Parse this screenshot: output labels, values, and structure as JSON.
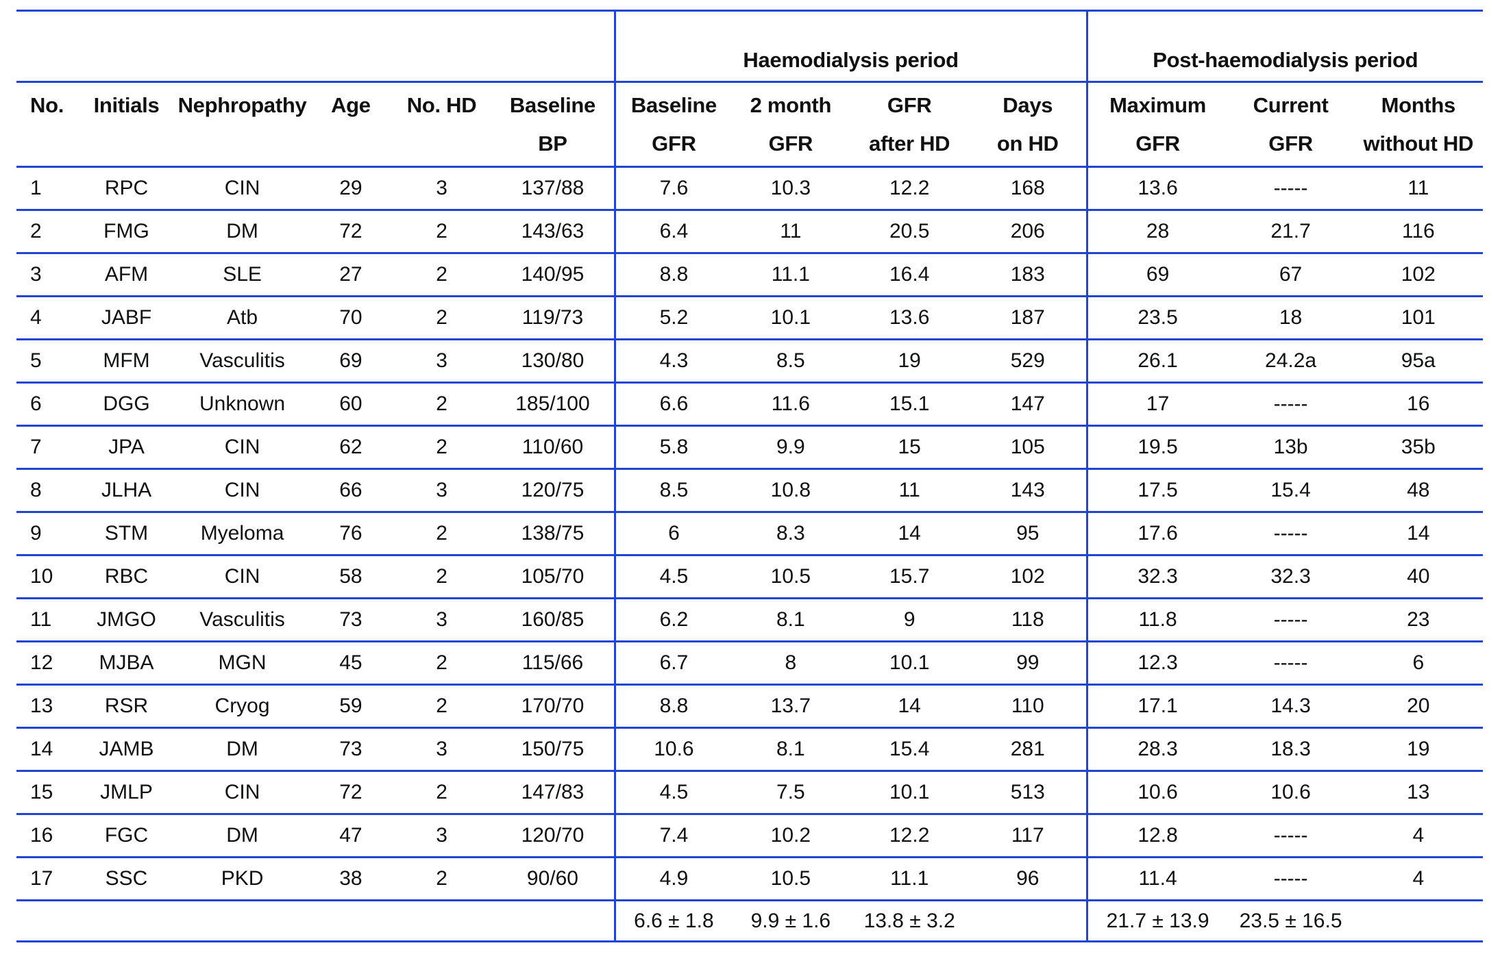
{
  "table": {
    "group_headers": [
      {
        "label": "",
        "colspan": 6
      },
      {
        "label": "Haemodialysis period",
        "colspan": 4
      },
      {
        "label": "Post-haemodialysis period",
        "colspan": 3
      }
    ],
    "columns": [
      {
        "line1": "No.",
        "line2": ""
      },
      {
        "line1": "Initials",
        "line2": ""
      },
      {
        "line1": "Nephropathy",
        "line2": ""
      },
      {
        "line1": "Age",
        "line2": ""
      },
      {
        "line1": "No. HD",
        "line2": ""
      },
      {
        "line1": "Baseline",
        "line2": "BP"
      },
      {
        "line1": "Baseline",
        "line2": "GFR"
      },
      {
        "line1": "2 month",
        "line2": "GFR"
      },
      {
        "line1": "GFR",
        "line2": "after HD"
      },
      {
        "line1": "Days",
        "line2": "on HD"
      },
      {
        "line1": "Maximum",
        "line2": "GFR"
      },
      {
        "line1": "Current",
        "line2": "GFR"
      },
      {
        "line1": "Months",
        "line2": "without HD"
      }
    ],
    "rows": [
      [
        "1",
        "RPC",
        "CIN",
        "29",
        "3",
        "137/88",
        "7.6",
        "10.3",
        "12.2",
        "168",
        "13.6",
        "-----",
        "11"
      ],
      [
        "2",
        "FMG",
        "DM",
        "72",
        "2",
        "143/63",
        "6.4",
        "11",
        "20.5",
        "206",
        "28",
        "21.7",
        "116"
      ],
      [
        "3",
        "AFM",
        "SLE",
        "27",
        "2",
        "140/95",
        "8.8",
        "11.1",
        "16.4",
        "183",
        "69",
        "67",
        "102"
      ],
      [
        "4",
        "JABF",
        "Atb",
        "70",
        "2",
        "119/73",
        "5.2",
        "10.1",
        "13.6",
        "187",
        "23.5",
        "18",
        "101"
      ],
      [
        "5",
        "MFM",
        "Vasculitis",
        "69",
        "3",
        "130/80",
        "4.3",
        "8.5",
        "19",
        "529",
        "26.1",
        "24.2a",
        "95a"
      ],
      [
        "6",
        "DGG",
        "Unknown",
        "60",
        "2",
        "185/100",
        "6.6",
        "11.6",
        "15.1",
        "147",
        "17",
        "-----",
        "16"
      ],
      [
        "7",
        "JPA",
        "CIN",
        "62",
        "2",
        "110/60",
        "5.8",
        "9.9",
        "15",
        "105",
        "19.5",
        "13b",
        "35b"
      ],
      [
        "8",
        "JLHA",
        "CIN",
        "66",
        "3",
        "120/75",
        "8.5",
        "10.8",
        "11",
        "143",
        "17.5",
        "15.4",
        "48"
      ],
      [
        "9",
        "STM",
        "Myeloma",
        "76",
        "2",
        "138/75",
        "6",
        "8.3",
        "14",
        "95",
        "17.6",
        "-----",
        "14"
      ],
      [
        "10",
        "RBC",
        "CIN",
        "58",
        "2",
        "105/70",
        "4.5",
        "10.5",
        "15.7",
        "102",
        "32.3",
        "32.3",
        "40"
      ],
      [
        "11",
        "JMGO",
        "Vasculitis",
        "73",
        "3",
        "160/85",
        "6.2",
        "8.1",
        "9",
        "118",
        "11.8",
        "-----",
        "23"
      ],
      [
        "12",
        "MJBA",
        "MGN",
        "45",
        "2",
        "115/66",
        "6.7",
        "8",
        "10.1",
        "99",
        "12.3",
        "-----",
        "6"
      ],
      [
        "13",
        "RSR",
        "Cryog",
        "59",
        "2",
        "170/70",
        "8.8",
        "13.7",
        "14",
        "110",
        "17.1",
        "14.3",
        "20"
      ],
      [
        "14",
        "JAMB",
        "DM",
        "73",
        "3",
        "150/75",
        "10.6",
        "8.1",
        "15.4",
        "281",
        "28.3",
        "18.3",
        "19"
      ],
      [
        "15",
        "JMLP",
        "CIN",
        "72",
        "2",
        "147/83",
        "4.5",
        "7.5",
        "10.1",
        "513",
        "10.6",
        "10.6",
        "13"
      ],
      [
        "16",
        "FGC",
        "DM",
        "47",
        "3",
        "120/70",
        "7.4",
        "10.2",
        "12.2",
        "117",
        "12.8",
        "-----",
        "4"
      ],
      [
        "17",
        "SSC",
        "PKD",
        "38",
        "2",
        "90/60",
        "4.9",
        "10.5",
        "11.1",
        "96",
        "11.4",
        "-----",
        "4"
      ]
    ],
    "summary_row": [
      "",
      "",
      "",
      "",
      "",
      "",
      "6.6 ± 1.8",
      "9.9 ± 1.6",
      "13.8 ± 3.2",
      "",
      "21.7 ± 13.9",
      "23.5 ± 16.5",
      ""
    ]
  },
  "colors": {
    "rule_blue": "#2244d2",
    "text": "#111111",
    "background": "#ffffff"
  }
}
